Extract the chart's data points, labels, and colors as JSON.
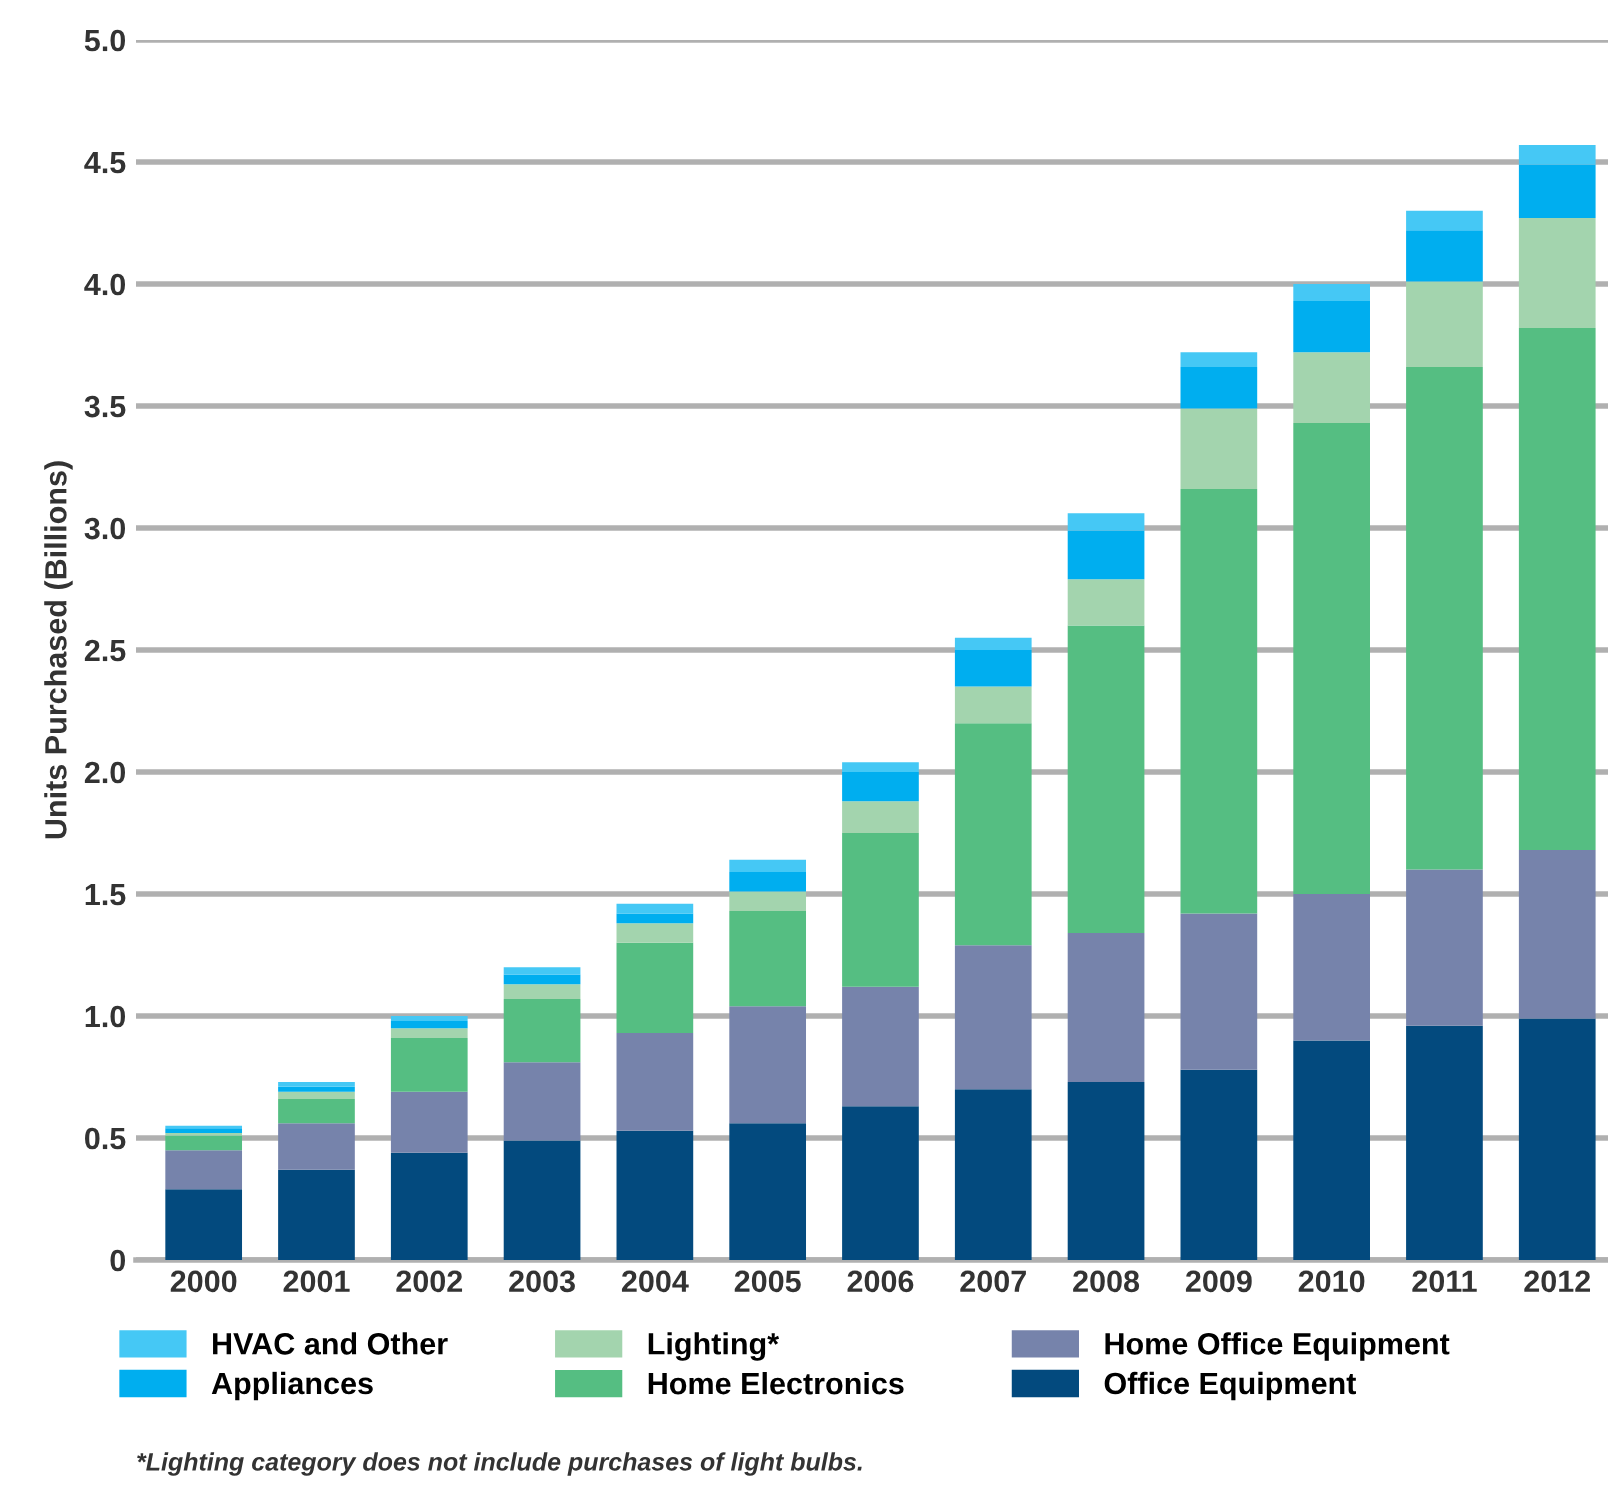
{
  "chart_data": {
    "type": "bar",
    "stacked": true,
    "ylabel": "Units Purchased (Billions)",
    "categories": [
      "2000",
      "2001",
      "2002",
      "2003",
      "2004",
      "2005",
      "2006",
      "2007",
      "2008",
      "2009",
      "2010",
      "2011",
      "2012"
    ],
    "series": [
      {
        "name": "Office Equipment",
        "color": "#034a7e",
        "values": [
          0.29,
          0.37,
          0.44,
          0.49,
          0.53,
          0.56,
          0.63,
          0.7,
          0.73,
          0.78,
          0.9,
          0.96,
          0.99
        ]
      },
      {
        "name": "Home Office Equipment",
        "color": "#7683ab",
        "values": [
          0.16,
          0.19,
          0.25,
          0.32,
          0.4,
          0.48,
          0.49,
          0.59,
          0.61,
          0.64,
          0.6,
          0.64,
          0.69
        ]
      },
      {
        "name": "Home Electronics",
        "color": "#55be82",
        "values": [
          0.06,
          0.1,
          0.22,
          0.26,
          0.37,
          0.39,
          0.63,
          0.91,
          1.26,
          1.74,
          1.93,
          2.06,
          2.14
        ]
      },
      {
        "name": "Lighting*",
        "color": "#a3d4ae",
        "values": [
          0.01,
          0.03,
          0.04,
          0.06,
          0.08,
          0.08,
          0.13,
          0.15,
          0.19,
          0.33,
          0.29,
          0.35,
          0.45
        ]
      },
      {
        "name": "Appliances",
        "color": "#00aeef",
        "values": [
          0.02,
          0.02,
          0.03,
          0.04,
          0.04,
          0.08,
          0.12,
          0.15,
          0.2,
          0.17,
          0.21,
          0.21,
          0.22
        ]
      },
      {
        "name": "HVAC and Other",
        "color": "#45c8f5",
        "values": [
          0.01,
          0.02,
          0.02,
          0.03,
          0.04,
          0.05,
          0.04,
          0.05,
          0.07,
          0.06,
          0.07,
          0.08,
          0.08
        ]
      }
    ],
    "ylim": [
      0,
      5.0
    ],
    "yticks": [
      0,
      {
        "value": 0.5,
        "label": "0.5"
      },
      {
        "value": 1.0,
        "label": "1.0"
      },
      {
        "value": 1.5,
        "label": "1.5"
      },
      {
        "value": 2.0,
        "label": "2.0"
      },
      {
        "value": 2.5,
        "label": "2.5"
      },
      {
        "value": 3.0,
        "label": "3.0"
      },
      {
        "value": 3.5,
        "label": "3.5"
      },
      {
        "value": 4.0,
        "label": "4.0"
      },
      {
        "value": 4.5,
        "label": "4.5"
      },
      {
        "value": 5.0,
        "label": "5.0"
      }
    ],
    "grid": "y",
    "legend": "bottom",
    "annotations": [
      "*Lighting category does not include purchases of light bulbs."
    ]
  }
}
